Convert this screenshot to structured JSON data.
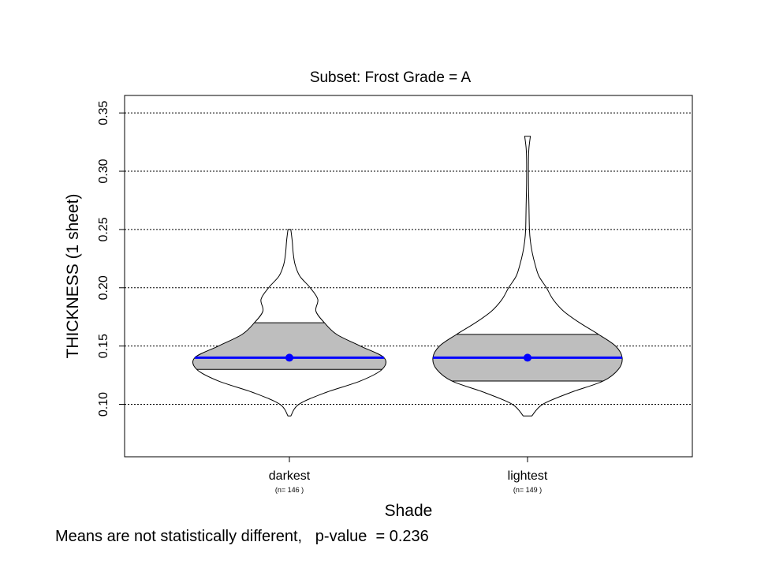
{
  "chart_data": {
    "type": "violin",
    "title": "Subset:  Frost Grade = A",
    "xlabel": "Shade",
    "ylabel": "THICKNESS (1 sheet)",
    "ylim": [
      0.055,
      0.365
    ],
    "yticks": [
      0.1,
      0.15,
      0.2,
      0.25,
      0.3,
      0.35
    ],
    "ytick_labels": [
      "0.10",
      "0.15",
      "0.20",
      "0.25",
      "0.30",
      "0.35"
    ],
    "grid": "horizontal dotted at y ticks",
    "categories": [
      "darkest",
      "lightest"
    ],
    "n_labels": [
      "(n= 146 )",
      "(n= 149 )"
    ],
    "groups": [
      {
        "name": "darkest",
        "n": 146,
        "mean": 0.14,
        "q1": 0.13,
        "q3": 0.17,
        "min": 0.09,
        "max": 0.25,
        "density_profile": [
          [
            0.09,
            0.015
          ],
          [
            0.1,
            0.1
          ],
          [
            0.11,
            0.38
          ],
          [
            0.12,
            0.75
          ],
          [
            0.13,
            0.98
          ],
          [
            0.14,
            1.0
          ],
          [
            0.15,
            0.75
          ],
          [
            0.16,
            0.5
          ],
          [
            0.17,
            0.37
          ],
          [
            0.18,
            0.28
          ],
          [
            0.19,
            0.3
          ],
          [
            0.2,
            0.22
          ],
          [
            0.21,
            0.11
          ],
          [
            0.22,
            0.06
          ],
          [
            0.23,
            0.04
          ],
          [
            0.24,
            0.03
          ],
          [
            0.25,
            0.015
          ]
        ]
      },
      {
        "name": "lightest",
        "n": 149,
        "mean": 0.14,
        "q1": 0.12,
        "q3": 0.16,
        "min": 0.09,
        "max": 0.33,
        "density_profile": [
          [
            0.09,
            0.045
          ],
          [
            0.1,
            0.16
          ],
          [
            0.11,
            0.45
          ],
          [
            0.12,
            0.8
          ],
          [
            0.13,
            0.96
          ],
          [
            0.14,
            1.0
          ],
          [
            0.15,
            0.93
          ],
          [
            0.16,
            0.75
          ],
          [
            0.17,
            0.55
          ],
          [
            0.18,
            0.38
          ],
          [
            0.19,
            0.27
          ],
          [
            0.2,
            0.2
          ],
          [
            0.21,
            0.12
          ],
          [
            0.22,
            0.08
          ],
          [
            0.23,
            0.05
          ],
          [
            0.24,
            0.03
          ],
          [
            0.25,
            0.02
          ],
          [
            0.27,
            0.015
          ],
          [
            0.29,
            0.01
          ],
          [
            0.31,
            0.01
          ],
          [
            0.32,
            0.015
          ],
          [
            0.33,
            0.03
          ]
        ]
      }
    ],
    "colors": {
      "box_fill": "#bebebe",
      "mean_line": "#0000ff",
      "violin_outline": "#000000",
      "grid": "#000000"
    },
    "footnote": "Means are not statistically different,   p-value  = 0.236"
  }
}
